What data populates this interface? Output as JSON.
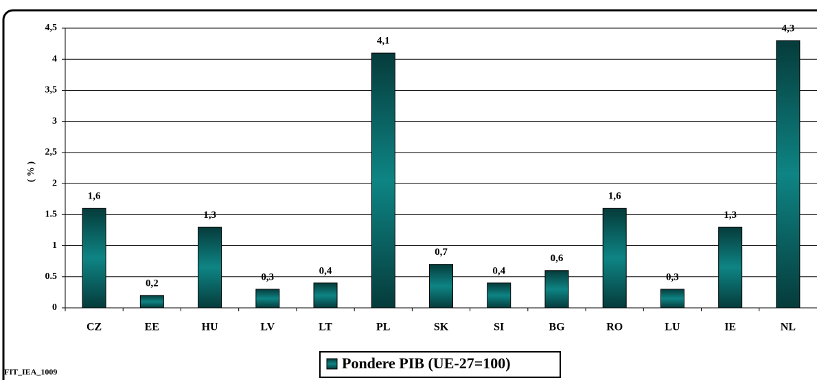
{
  "chart_data": {
    "type": "bar",
    "categories": [
      "CZ",
      "EE",
      "HU",
      "LV",
      "LT",
      "PL",
      "SK",
      "SI",
      "BG",
      "RO",
      "LU",
      "IE",
      "NL"
    ],
    "series": [
      {
        "name": "Pondere PIB (UE-27=100)",
        "color": "#0e8484",
        "values": [
          1.6,
          0.2,
          1.3,
          0.3,
          0.4,
          4.1,
          0.7,
          0.4,
          0.6,
          1.6,
          0.3,
          1.3,
          4.3
        ],
        "value_labels": [
          "1,6",
          "0,2",
          "1,3",
          "0,3",
          "0,4",
          "4,1",
          "0,7",
          "0,4",
          "0,6",
          "1,6",
          "0,3",
          "1,3",
          "4,3"
        ]
      }
    ],
    "y_label": "( % )",
    "ylim": [
      0,
      4.5
    ],
    "yticks": [
      0,
      0.5,
      1,
      1.5,
      2,
      {
        "value": 2.5,
        "label": "2,5"
      },
      3,
      {
        "value": 3.5,
        "label": "3,5"
      },
      4,
      {
        "value": 4.5,
        "label": "4,5"
      }
    ],
    "grid": true,
    "footer": "FIT_IEA_1009"
  }
}
